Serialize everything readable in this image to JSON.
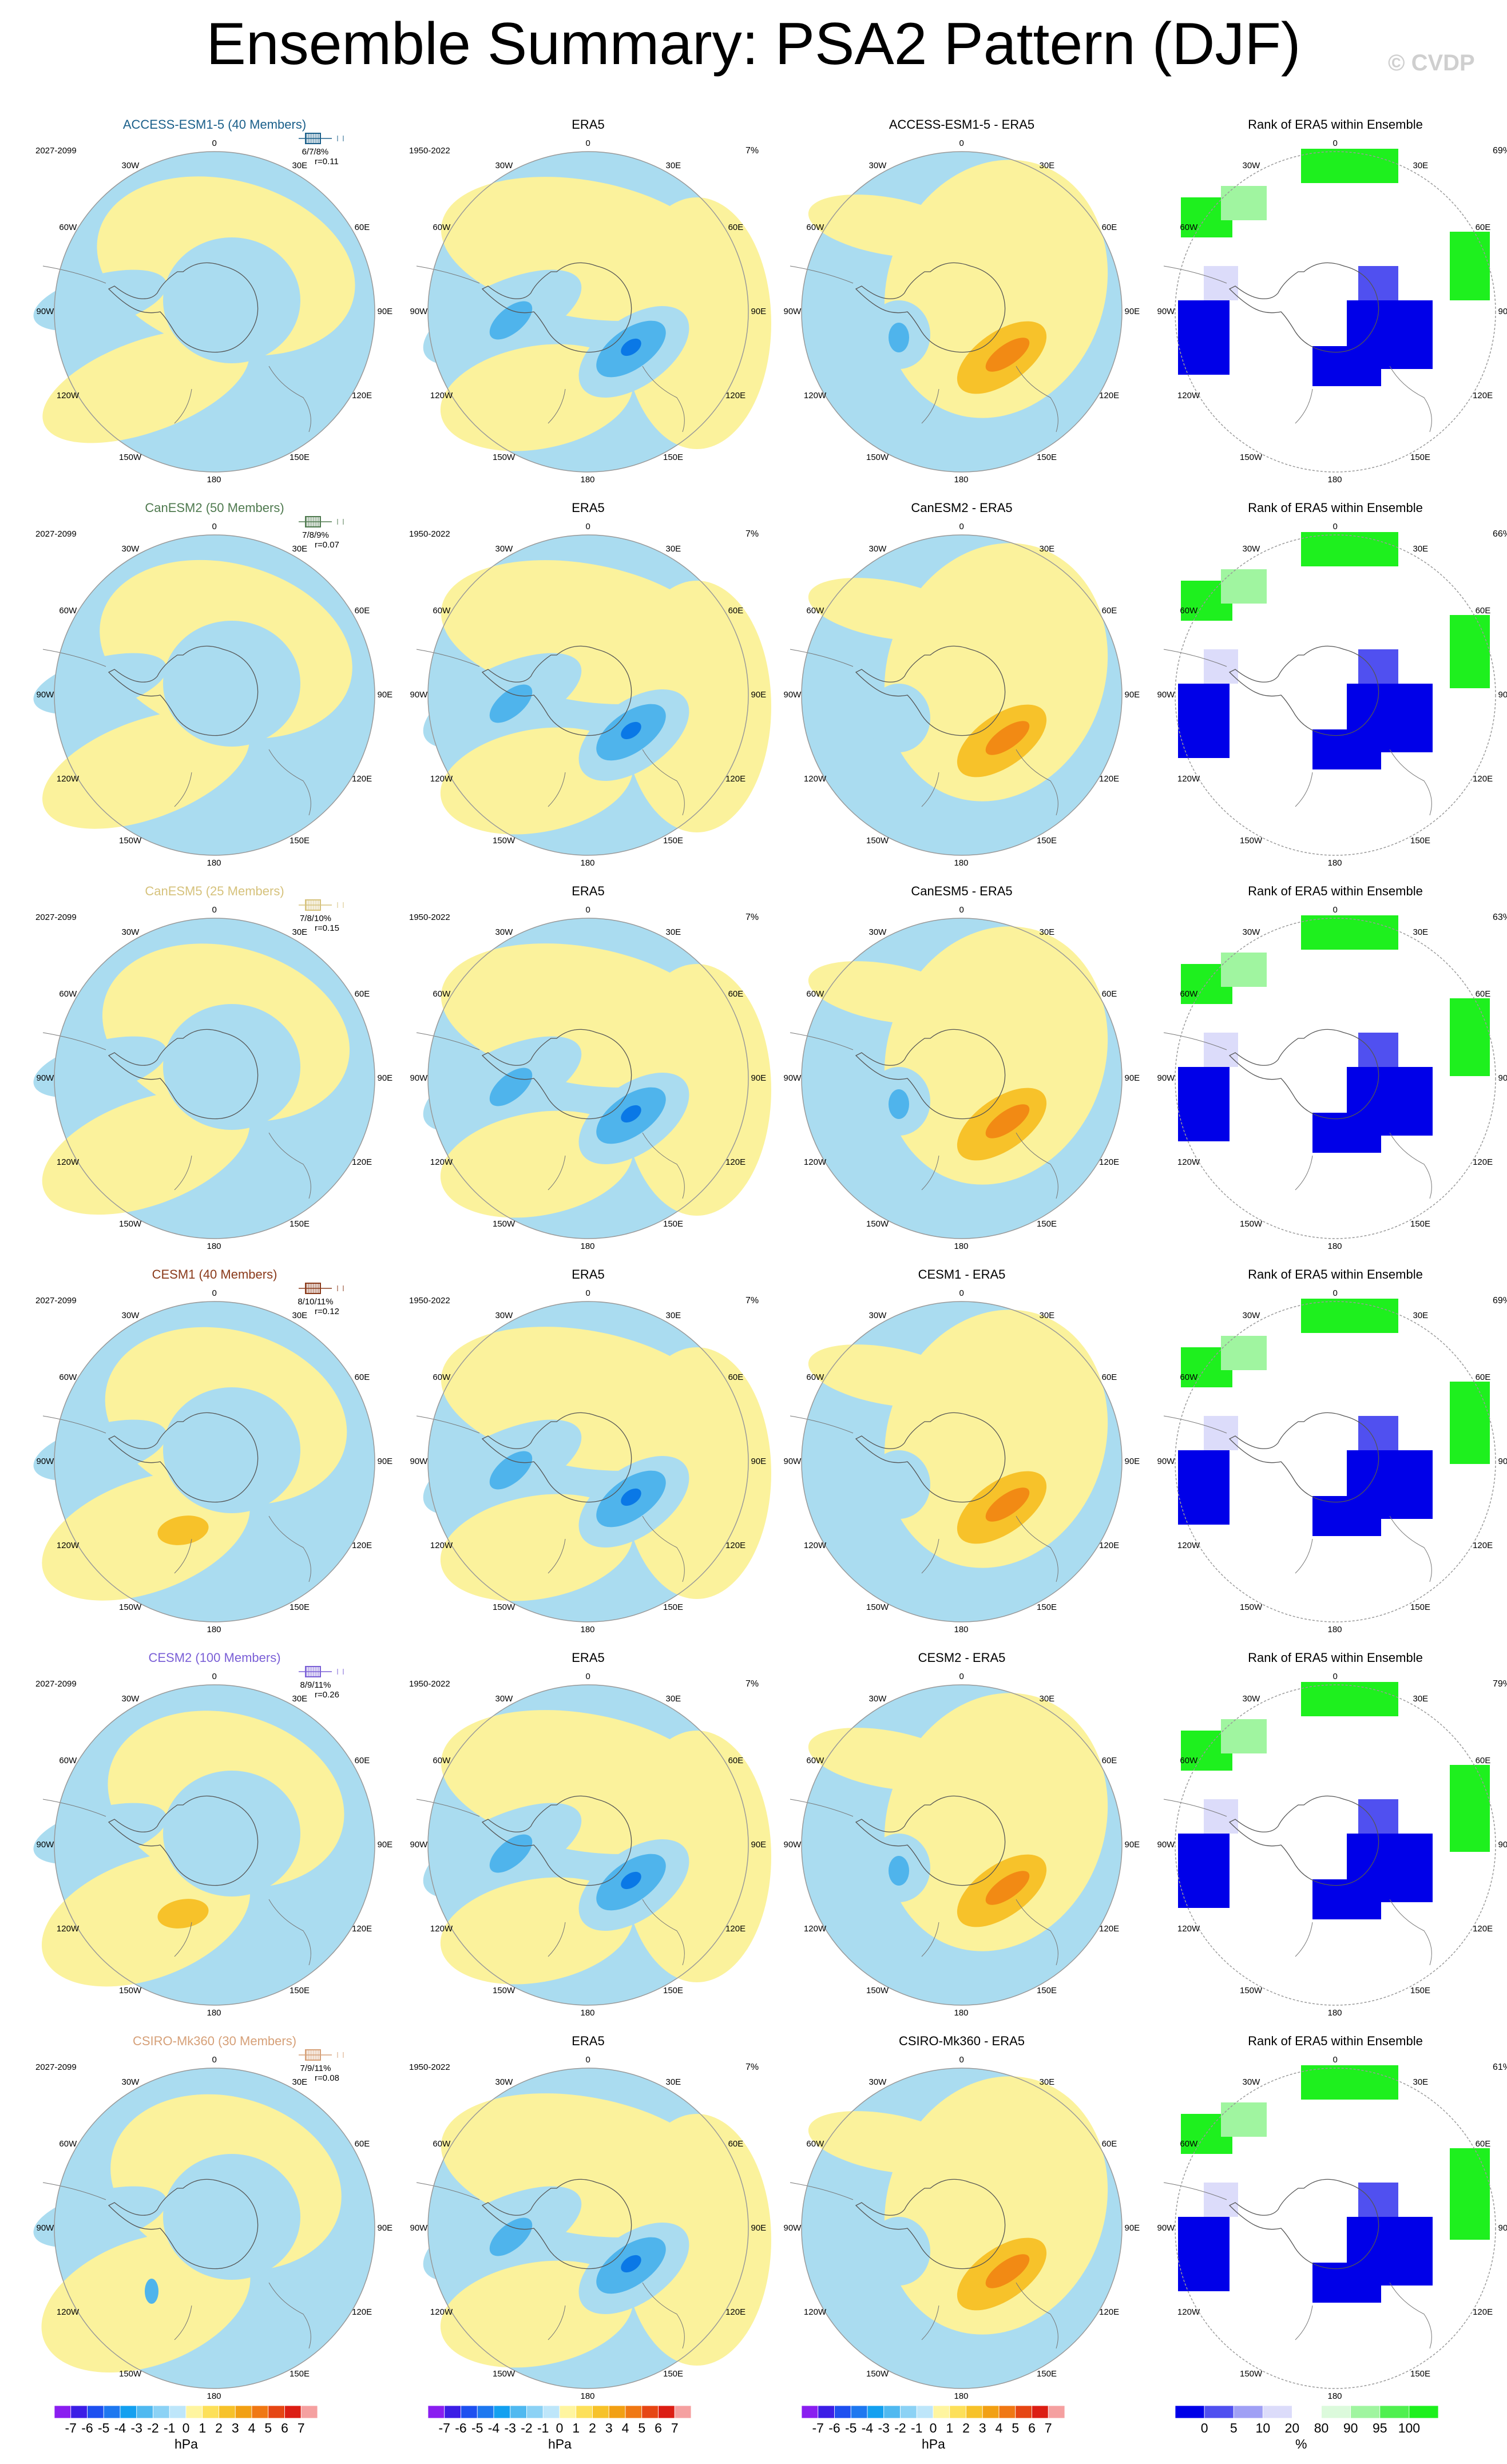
{
  "page": {
    "title": "Ensemble Summary: PSA2 Pattern (DJF)",
    "copyright": "© CVDP"
  },
  "colors": {
    "ocean_light": "#aadcf0",
    "yellow_light": "#fbf29c",
    "blue_mid": "#4fb4ec",
    "blue_dark": "#0a78e6",
    "orange_mid": "#f7c22a",
    "orange_dark": "#f28a14",
    "rank_green": "#1ef01e",
    "rank_blue": "#0000e8",
    "model_colors": [
      "#1a5f8a",
      "#4f7a4f",
      "#d6c27c",
      "#8a3a1a",
      "#7a5fd6",
      "#d6a078"
    ]
  },
  "lon_labels": [
    "0",
    "30E",
    "60E",
    "90E",
    "120E",
    "150E",
    "180",
    "150W",
    "120W",
    "90W",
    "60W",
    "30W"
  ],
  "rows": [
    {
      "model": "ACCESS-ESM1-5 (40 Members)",
      "model_short": "ACCESS-ESM1-5",
      "period": "2027-2099",
      "era_period": "1950-2022",
      "stats": "6/7/8%",
      "r": "r=0.11",
      "era_pct": "7%",
      "rank_pct": "69%",
      "panels": [
        "",
        "ERA5",
        "ACCESS-ESM1-5 - ERA5",
        "Rank of ERA5 within Ensemble"
      ]
    },
    {
      "model": "CanESM2 (50 Members)",
      "model_short": "CanESM2",
      "period": "2027-2099",
      "era_period": "1950-2022",
      "stats": "7/8/9%",
      "r": "r=0.07",
      "era_pct": "7%",
      "rank_pct": "66%",
      "panels": [
        "",
        "ERA5",
        "CanESM2 - ERA5",
        "Rank of ERA5 within Ensemble"
      ]
    },
    {
      "model": "CanESM5 (25 Members)",
      "model_short": "CanESM5",
      "period": "2027-2099",
      "era_period": "1950-2022",
      "stats": "7/8/10%",
      "r": "r=0.15",
      "era_pct": "7%",
      "rank_pct": "63%",
      "panels": [
        "",
        "ERA5",
        "CanESM5 - ERA5",
        "Rank of ERA5 within Ensemble"
      ]
    },
    {
      "model": "CESM1 (40 Members)",
      "model_short": "CESM1",
      "period": "2027-2099",
      "era_period": "1950-2022",
      "stats": "8/10/11%",
      "r": "r=0.12",
      "era_pct": "7%",
      "rank_pct": "69%",
      "panels": [
        "",
        "ERA5",
        "CESM1 - ERA5",
        "Rank of ERA5 within Ensemble"
      ]
    },
    {
      "model": "CESM2 (100 Members)",
      "model_short": "CESM2",
      "period": "2027-2099",
      "era_period": "1950-2022",
      "stats": "8/9/11%",
      "r": "r=0.26",
      "era_pct": "7%",
      "rank_pct": "79%",
      "panels": [
        "",
        "ERA5",
        "CESM2 - ERA5",
        "Rank of ERA5 within Ensemble"
      ]
    },
    {
      "model": "CSIRO-Mk360 (30 Members)",
      "model_short": "CSIRO-Mk360",
      "period": "2027-2099",
      "era_period": "1950-2022",
      "stats": "7/9/11%",
      "r": "r=0.08",
      "era_pct": "7%",
      "rank_pct": "61%",
      "panels": [
        "",
        "ERA5",
        "CSIRO-Mk360 - ERA5",
        "Rank of ERA5 within Ensemble"
      ]
    }
  ],
  "colorbars": {
    "hpa": {
      "labels": [
        "-7",
        "-6",
        "-5",
        "-4",
        "-3",
        "-2",
        "-1",
        "0",
        "1",
        "2",
        "3",
        "4",
        "5",
        "6",
        "7"
      ],
      "unit": "hPa",
      "colors": [
        "#8a1ef0",
        "#3c1ee6",
        "#1e50f0",
        "#1e78f0",
        "#14a0f0",
        "#50b9f0",
        "#8cd2f5",
        "#bee6fa",
        "#fff5a0",
        "#fde05a",
        "#f7c22a",
        "#f2a014",
        "#f07814",
        "#e64614",
        "#dc1e14",
        "#f5a0a0"
      ]
    },
    "rank": {
      "labels": [
        "0",
        "5",
        "10",
        "20",
        "80",
        "90",
        "95",
        "100"
      ],
      "unit": "%",
      "colors": [
        "#0000e8",
        "#5050f0",
        "#a0a0f5",
        "#dcdcfa",
        "#ffffff",
        "#dcfadc",
        "#a0f5a0",
        "#50f050",
        "#1ef01e"
      ]
    }
  }
}
